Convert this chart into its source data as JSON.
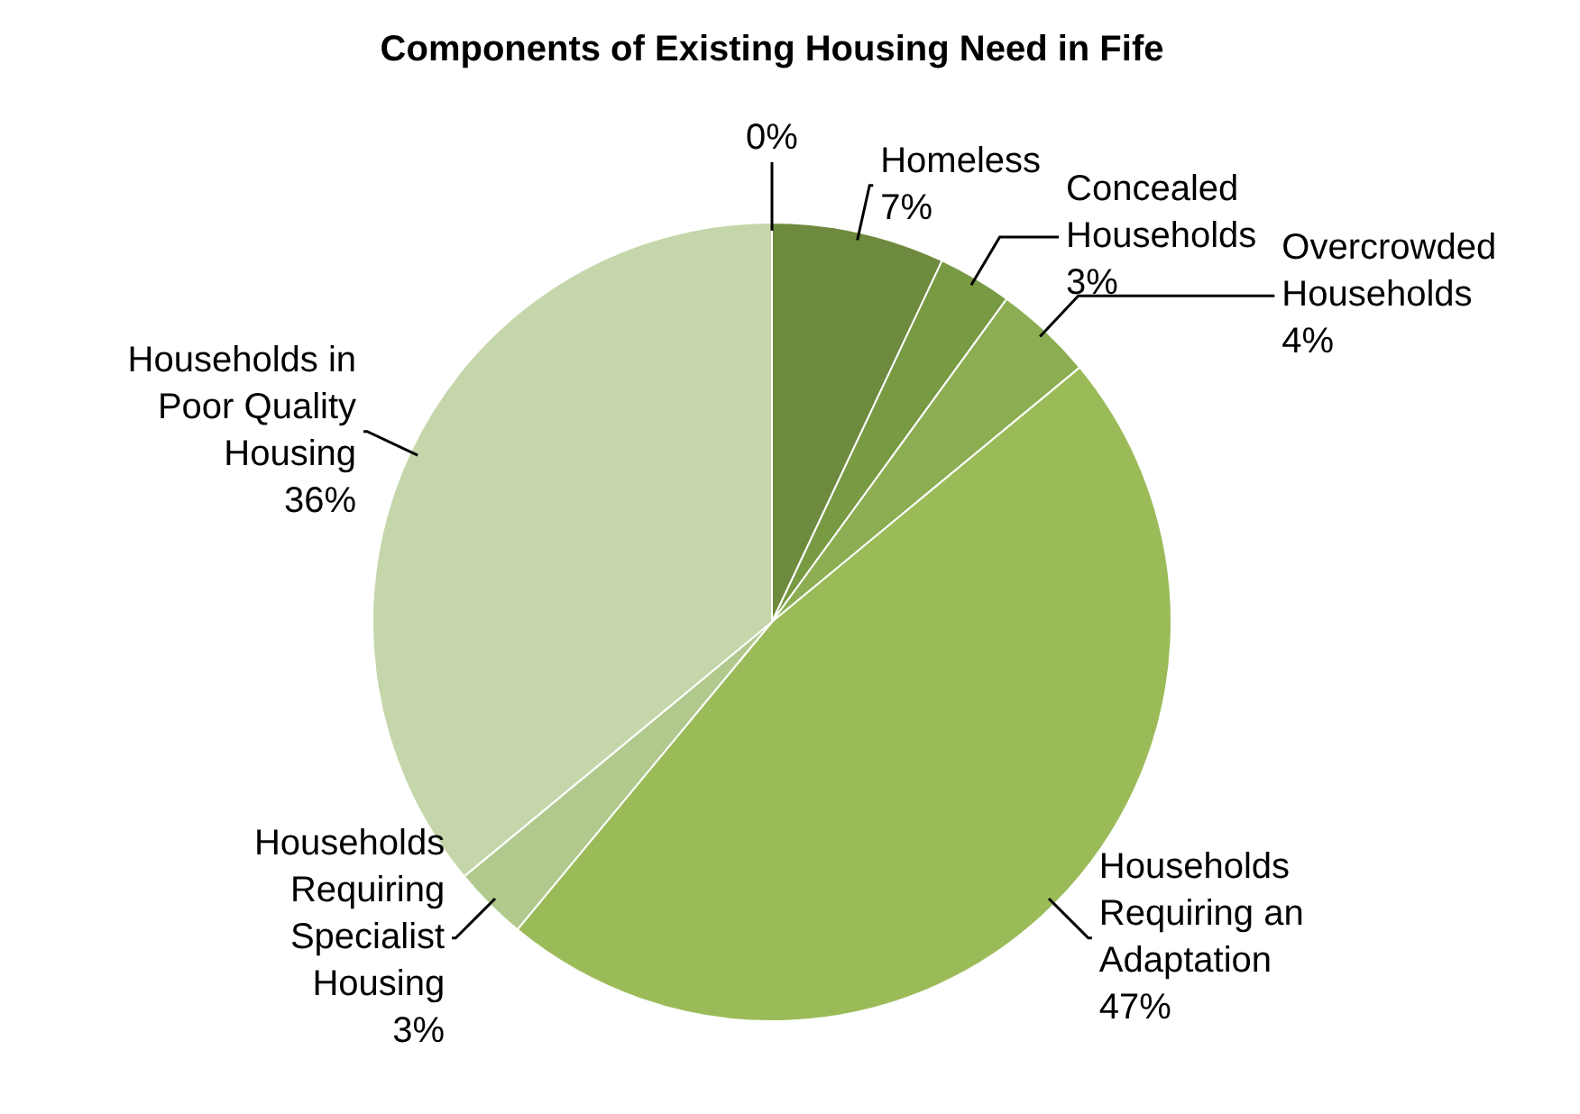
{
  "chart_data": {
    "type": "pie",
    "title": "Components of Existing Housing Need in Fife",
    "categories": [
      "Homeless",
      "Concealed Households",
      "Overcrowded Households",
      "Households Requiring an Adaptation",
      "Households Requiring Specialist Housing",
      "Households in Poor Quality Housing",
      null
    ],
    "values": [
      7,
      3,
      4,
      47,
      3,
      36,
      0
    ],
    "value_labels": [
      "7%",
      "3%",
      "4%",
      "47%",
      "3%",
      "36%",
      "0%"
    ],
    "colors": [
      "#6e8a3e",
      "#779a43",
      "#8cad52",
      "#9bbb59",
      "#b1c98c",
      "#c5d6aa",
      "#dbe6cb"
    ],
    "legend": false
  }
}
